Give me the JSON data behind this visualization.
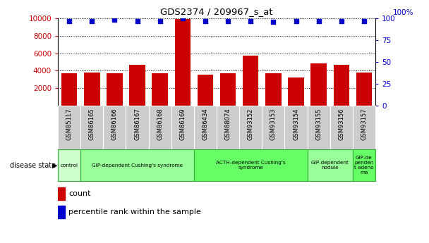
{
  "title": "GDS2374 / 209967_s_at",
  "samples": [
    "GSM85117",
    "GSM86165",
    "GSM86166",
    "GSM86167",
    "GSM86168",
    "GSM86169",
    "GSM86434",
    "GSM88074",
    "GSM93152",
    "GSM93153",
    "GSM93154",
    "GSM93155",
    "GSM93156",
    "GSM93157"
  ],
  "counts": [
    3750,
    3820,
    3720,
    4680,
    3730,
    9900,
    3520,
    3720,
    5700,
    3720,
    3250,
    4870,
    4650,
    3780
  ],
  "percentiles": [
    97,
    97,
    98,
    97,
    97,
    100,
    97,
    97,
    97,
    96,
    97,
    97,
    97,
    97
  ],
  "ylim_left": [
    0,
    10000
  ],
  "ylim_right": [
    0,
    100
  ],
  "yticks_left": [
    2000,
    4000,
    6000,
    8000,
    10000
  ],
  "yticks_right": [
    0,
    25,
    50,
    75,
    100
  ],
  "bar_color": "#cc0000",
  "dot_color": "#0000cc",
  "disease_groups": [
    {
      "label": "control",
      "start": 0,
      "end": 1,
      "color": "#ccffcc"
    },
    {
      "label": "GIP-dependent Cushing's syndrome",
      "start": 1,
      "end": 6,
      "color": "#99ff99"
    },
    {
      "label": "ACTH-dependent Cushing's\nsyndrome",
      "start": 6,
      "end": 11,
      "color": "#66ff66"
    },
    {
      "label": "GIP-dependent\nnodule",
      "start": 11,
      "end": 13,
      "color": "#99ff99"
    },
    {
      "label": "GIP-de\npenden\nt adeno\nma",
      "start": 13,
      "end": 14,
      "color": "#66ff66"
    }
  ],
  "disease_label": "disease state",
  "legend_count": "count",
  "legend_percentile": "percentile rank within the sample",
  "tick_color_left": "#cc0000",
  "tick_color_right": "#0000cc"
}
